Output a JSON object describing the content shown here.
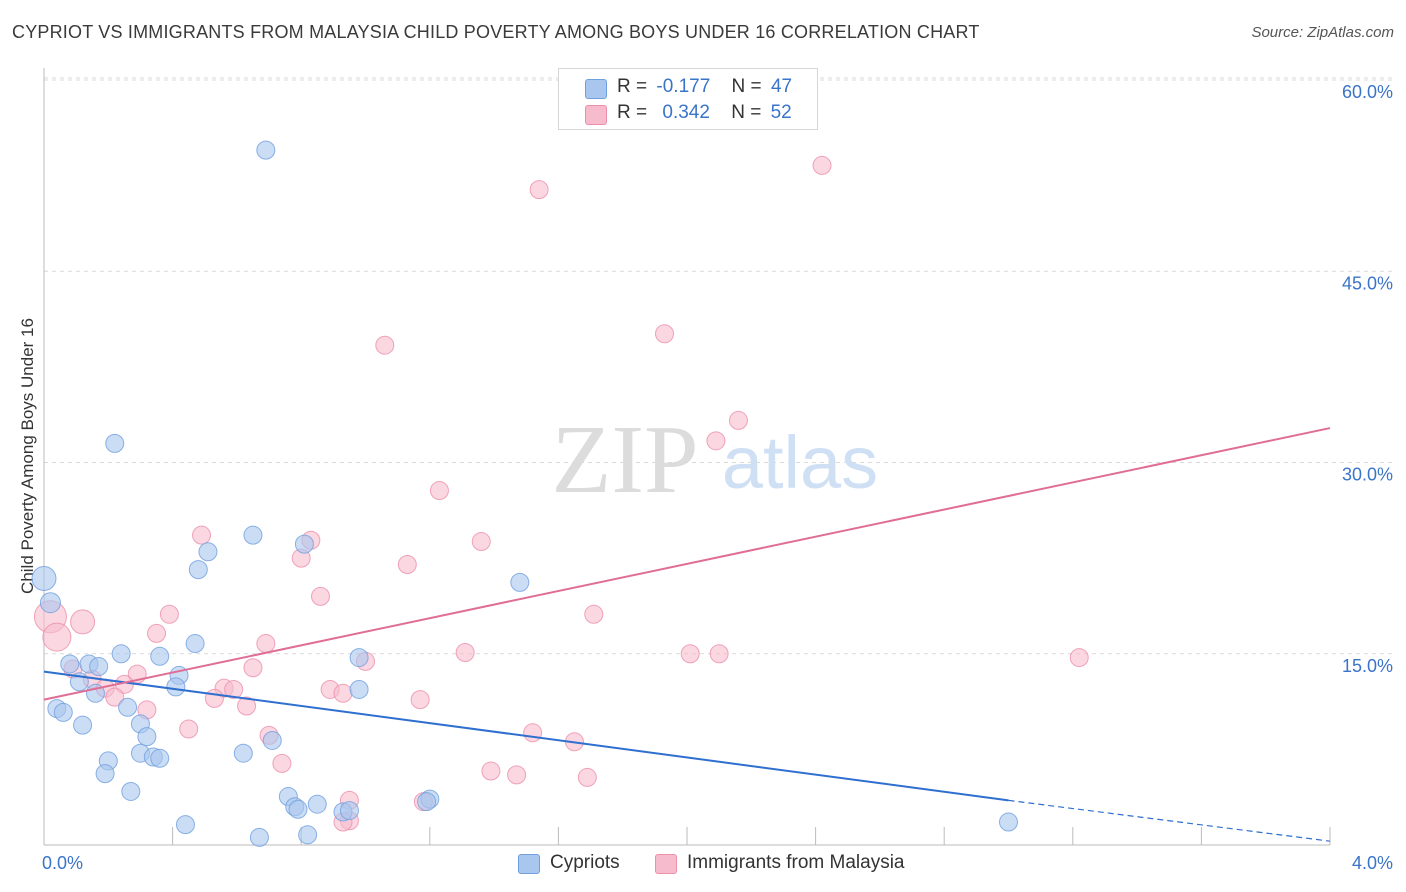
{
  "header": {
    "title": "CYPRIOT VS IMMIGRANTS FROM MALAYSIA CHILD POVERTY AMONG BOYS UNDER 16 CORRELATION CHART",
    "source": "Source: ZipAtlas.com"
  },
  "watermark": {
    "zip": "ZIP",
    "atlas": "atlas"
  },
  "legend": {
    "rows": [
      {
        "r_label": "R =",
        "r_value": "-0.177",
        "n_label": "N =",
        "n_value": "47"
      },
      {
        "r_label": "R =",
        "r_value": "0.342",
        "n_label": "N =",
        "n_value": "52"
      }
    ]
  },
  "bottom_legend": {
    "series_a": "Cypriots",
    "series_b": "Immigrants from Malaysia"
  },
  "colors": {
    "blue_fill": "#a9c6ef",
    "blue_stroke": "#6f9fde",
    "blue_line": "#2e6fcf",
    "pink_fill": "#f6bccd",
    "pink_stroke": "#ec8fab",
    "pink_line": "#e06d95",
    "tick_text": "#3a74c9",
    "grid": "#d9d9d9"
  },
  "chart_data": {
    "type": "scatter",
    "title": "CYPRIOT VS IMMIGRANTS FROM MALAYSIA CHILD POVERTY AMONG BOYS UNDER 16 CORRELATION CHART",
    "xlabel": "",
    "ylabel": "Child Poverty Among Boys Under 16",
    "xlim": [
      0,
      4
    ],
    "ylim": [
      0,
      60
    ],
    "x_tick_labels": [
      "0.0%",
      "4.0%"
    ],
    "y_ticks": [
      15,
      30,
      45,
      60
    ],
    "y_tick_labels": [
      "15.0%",
      "30.0%",
      "45.0%",
      "60.0%"
    ],
    "series": [
      {
        "name": "Cypriots",
        "r": -0.177,
        "n": 47,
        "trend": {
          "x0": 0,
          "y0": 13.6,
          "x1": 3.0,
          "y1": 3.5,
          "dash_to_x": 4.0,
          "dash_to_y": 0.3
        },
        "points": [
          {
            "x": 0.69,
            "y": 54.5,
            "r": 9
          },
          {
            "x": 0.22,
            "y": 31.5,
            "r": 9
          },
          {
            "x": 0.0,
            "y": 20.9,
            "r": 12
          },
          {
            "x": 0.02,
            "y": 19.0,
            "r": 10
          },
          {
            "x": 0.65,
            "y": 24.3,
            "r": 9
          },
          {
            "x": 0.51,
            "y": 23.0,
            "r": 9
          },
          {
            "x": 0.48,
            "y": 21.6,
            "r": 9
          },
          {
            "x": 0.81,
            "y": 23.6,
            "r": 9
          },
          {
            "x": 1.48,
            "y": 20.6,
            "r": 9
          },
          {
            "x": 0.47,
            "y": 15.8,
            "r": 9
          },
          {
            "x": 0.24,
            "y": 15.0,
            "r": 9
          },
          {
            "x": 0.36,
            "y": 14.8,
            "r": 9
          },
          {
            "x": 0.08,
            "y": 14.2,
            "r": 9
          },
          {
            "x": 0.14,
            "y": 14.2,
            "r": 9
          },
          {
            "x": 0.17,
            "y": 14.0,
            "r": 9
          },
          {
            "x": 0.42,
            "y": 13.3,
            "r": 9
          },
          {
            "x": 0.11,
            "y": 12.8,
            "r": 9
          },
          {
            "x": 0.41,
            "y": 12.4,
            "r": 9
          },
          {
            "x": 0.16,
            "y": 11.9,
            "r": 9
          },
          {
            "x": 0.98,
            "y": 14.7,
            "r": 9
          },
          {
            "x": 0.98,
            "y": 12.2,
            "r": 9
          },
          {
            "x": 0.04,
            "y": 10.7,
            "r": 9
          },
          {
            "x": 0.06,
            "y": 10.4,
            "r": 9
          },
          {
            "x": 0.26,
            "y": 10.8,
            "r": 9
          },
          {
            "x": 0.12,
            "y": 9.4,
            "r": 9
          },
          {
            "x": 0.3,
            "y": 9.5,
            "r": 9
          },
          {
            "x": 0.32,
            "y": 8.5,
            "r": 9
          },
          {
            "x": 0.3,
            "y": 7.2,
            "r": 9
          },
          {
            "x": 0.34,
            "y": 6.9,
            "r": 9
          },
          {
            "x": 0.36,
            "y": 6.8,
            "r": 9
          },
          {
            "x": 0.62,
            "y": 7.2,
            "r": 9
          },
          {
            "x": 0.71,
            "y": 8.2,
            "r": 9
          },
          {
            "x": 0.2,
            "y": 6.6,
            "r": 9
          },
          {
            "x": 0.19,
            "y": 5.6,
            "r": 9
          },
          {
            "x": 0.27,
            "y": 4.2,
            "r": 9
          },
          {
            "x": 0.76,
            "y": 3.8,
            "r": 9
          },
          {
            "x": 0.78,
            "y": 3.0,
            "r": 9
          },
          {
            "x": 0.79,
            "y": 2.8,
            "r": 9
          },
          {
            "x": 0.85,
            "y": 3.2,
            "r": 9
          },
          {
            "x": 0.93,
            "y": 2.6,
            "r": 9
          },
          {
            "x": 0.95,
            "y": 2.7,
            "r": 9
          },
          {
            "x": 1.2,
            "y": 3.6,
            "r": 9
          },
          {
            "x": 0.44,
            "y": 1.6,
            "r": 9
          },
          {
            "x": 0.67,
            "y": 0.6,
            "r": 9
          },
          {
            "x": 0.82,
            "y": 0.8,
            "r": 9
          },
          {
            "x": 3.0,
            "y": 1.8,
            "r": 9
          },
          {
            "x": 1.19,
            "y": 3.4,
            "r": 9
          }
        ]
      },
      {
        "name": "Immigrants from Malaysia",
        "r": 0.342,
        "n": 52,
        "trend": {
          "x0": 0,
          "y0": 11.4,
          "x1": 4.0,
          "y1": 32.7
        },
        "points": [
          {
            "x": 2.42,
            "y": 53.3,
            "r": 9
          },
          {
            "x": 1.54,
            "y": 51.4,
            "r": 9
          },
          {
            "x": 1.93,
            "y": 40.1,
            "r": 9
          },
          {
            "x": 1.06,
            "y": 39.2,
            "r": 9
          },
          {
            "x": 2.16,
            "y": 33.3,
            "r": 9
          },
          {
            "x": 2.09,
            "y": 31.7,
            "r": 9
          },
          {
            "x": 1.23,
            "y": 27.8,
            "r": 9
          },
          {
            "x": 0.49,
            "y": 24.3,
            "r": 9
          },
          {
            "x": 0.83,
            "y": 23.9,
            "r": 9
          },
          {
            "x": 1.36,
            "y": 23.8,
            "r": 9
          },
          {
            "x": 0.8,
            "y": 22.5,
            "r": 9
          },
          {
            "x": 1.13,
            "y": 22.0,
            "r": 9
          },
          {
            "x": 0.86,
            "y": 19.5,
            "r": 9
          },
          {
            "x": 0.02,
            "y": 17.9,
            "r": 16
          },
          {
            "x": 0.12,
            "y": 17.5,
            "r": 12
          },
          {
            "x": 0.04,
            "y": 16.3,
            "r": 14
          },
          {
            "x": 0.39,
            "y": 18.1,
            "r": 9
          },
          {
            "x": 1.71,
            "y": 18.1,
            "r": 9
          },
          {
            "x": 0.35,
            "y": 16.6,
            "r": 9
          },
          {
            "x": 0.69,
            "y": 15.8,
            "r": 9
          },
          {
            "x": 1.31,
            "y": 15.1,
            "r": 9
          },
          {
            "x": 2.01,
            "y": 15.0,
            "r": 9
          },
          {
            "x": 2.1,
            "y": 15.0,
            "r": 9
          },
          {
            "x": 3.22,
            "y": 14.7,
            "r": 9
          },
          {
            "x": 1.0,
            "y": 14.4,
            "r": 9
          },
          {
            "x": 0.65,
            "y": 13.9,
            "r": 9
          },
          {
            "x": 0.09,
            "y": 13.8,
            "r": 9
          },
          {
            "x": 0.29,
            "y": 13.4,
            "r": 9
          },
          {
            "x": 0.15,
            "y": 13.0,
            "r": 9
          },
          {
            "x": 0.25,
            "y": 12.6,
            "r": 9
          },
          {
            "x": 0.19,
            "y": 12.3,
            "r": 9
          },
          {
            "x": 0.56,
            "y": 12.3,
            "r": 9
          },
          {
            "x": 0.59,
            "y": 12.2,
            "r": 9
          },
          {
            "x": 0.89,
            "y": 12.2,
            "r": 9
          },
          {
            "x": 0.93,
            "y": 11.9,
            "r": 9
          },
          {
            "x": 0.22,
            "y": 11.6,
            "r": 9
          },
          {
            "x": 0.53,
            "y": 11.5,
            "r": 9
          },
          {
            "x": 1.17,
            "y": 11.4,
            "r": 9
          },
          {
            "x": 0.63,
            "y": 10.9,
            "r": 9
          },
          {
            "x": 0.32,
            "y": 10.6,
            "r": 9
          },
          {
            "x": 0.45,
            "y": 9.1,
            "r": 9
          },
          {
            "x": 0.7,
            "y": 8.6,
            "r": 9
          },
          {
            "x": 1.52,
            "y": 8.8,
            "r": 9
          },
          {
            "x": 1.65,
            "y": 8.1,
            "r": 9
          },
          {
            "x": 0.74,
            "y": 6.4,
            "r": 9
          },
          {
            "x": 1.39,
            "y": 5.8,
            "r": 9
          },
          {
            "x": 1.47,
            "y": 5.5,
            "r": 9
          },
          {
            "x": 1.69,
            "y": 5.3,
            "r": 9
          },
          {
            "x": 0.95,
            "y": 3.5,
            "r": 9
          },
          {
            "x": 1.18,
            "y": 3.4,
            "r": 9
          },
          {
            "x": 0.95,
            "y": 1.9,
            "r": 9
          },
          {
            "x": 0.93,
            "y": 1.8,
            "r": 9
          }
        ]
      }
    ]
  }
}
